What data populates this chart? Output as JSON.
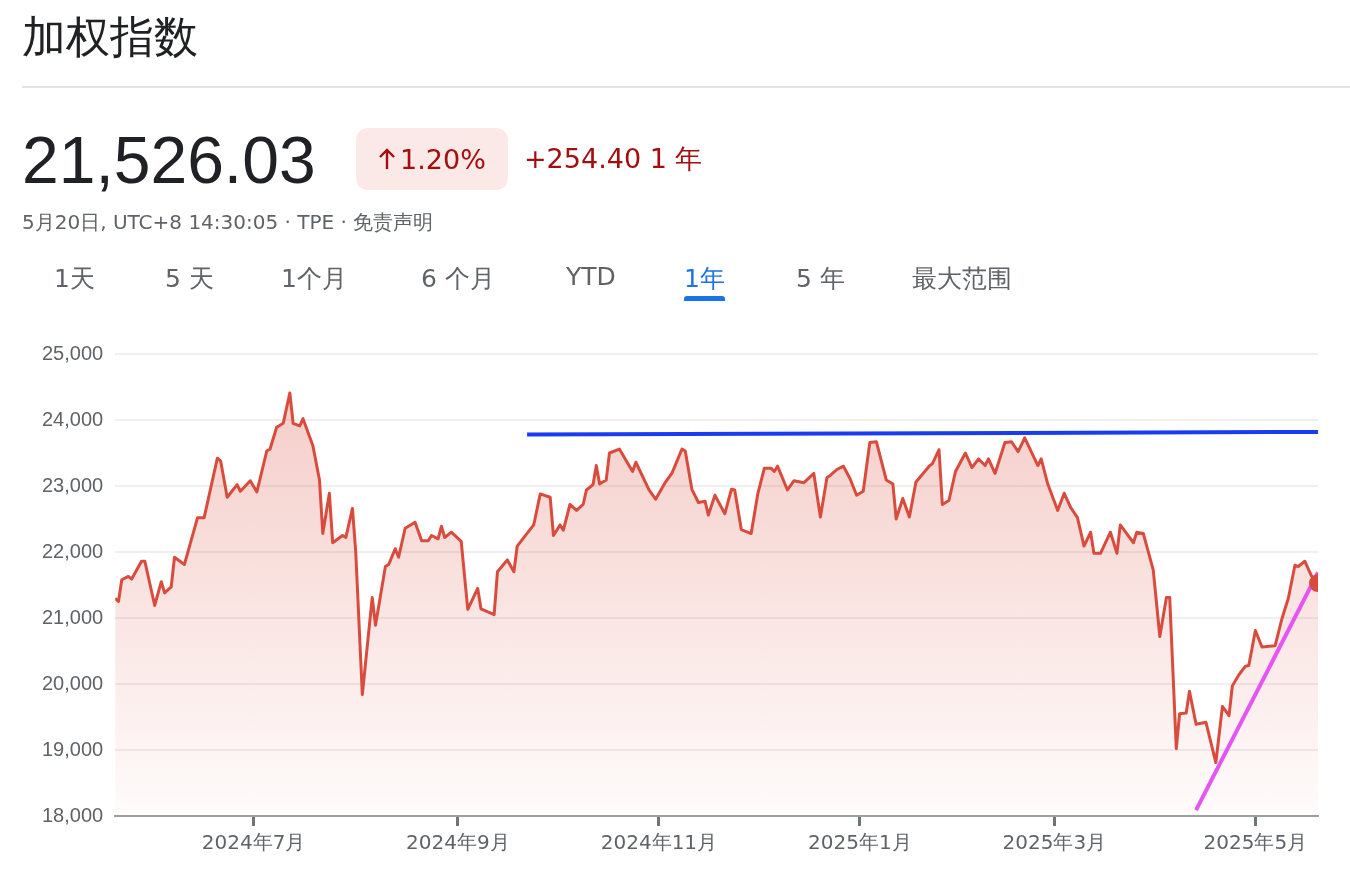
{
  "chart_data": {
    "type": "area",
    "title": "加权指数",
    "subtitle": "5月20日, UTC+8 14:30:05 · TPE · 免责声明",
    "annotations": [
      "21,526.03",
      "1.20%",
      "+254.40 1 年",
      "1天",
      "5 天",
      "1个月",
      "6 个月",
      "YTD",
      "1年",
      "5 年",
      "最大范围"
    ],
    "x": [
      "2024-05-20",
      "2024-05-21",
      "2024-05-22",
      "2024-05-24",
      "2024-05-25",
      "2024-05-28",
      "2024-05-29",
      "2024-06-01",
      "2024-06-03",
      "2024-06-04",
      "2024-06-06",
      "2024-06-07",
      "2024-06-10",
      "2024-06-14",
      "2024-06-16",
      "2024-06-20",
      "2024-06-21",
      "2024-06-23",
      "2024-06-26",
      "2024-06-27",
      "2024-06-30",
      "2024-07-02",
      "2024-07-05",
      "2024-07-06",
      "2024-07-08",
      "2024-07-10",
      "2024-07-12",
      "2024-07-13",
      "2024-07-15",
      "2024-07-16",
      "2024-07-19",
      "2024-07-21",
      "2024-07-22",
      "2024-07-24",
      "2024-07-25",
      "2024-07-28",
      "2024-07-29",
      "2024-07-31",
      "2024-08-01",
      "2024-08-03",
      "2024-08-06",
      "2024-08-07",
      "2024-08-10",
      "2024-08-11",
      "2024-08-13",
      "2024-08-14",
      "2024-08-16",
      "2024-08-19",
      "2024-08-21",
      "2024-08-23",
      "2024-08-24",
      "2024-08-26",
      "2024-08-27",
      "2024-08-28",
      "2024-08-30",
      "2024-09-02",
      "2024-09-04",
      "2024-09-07",
      "2024-09-08",
      "2024-09-12",
      "2024-09-13",
      "2024-09-16",
      "2024-09-18",
      "2024-09-19",
      "2024-09-24",
      "2024-09-26",
      "2024-09-29",
      "2024-09-30",
      "2024-10-02",
      "2024-10-03",
      "2024-10-05",
      "2024-10-07",
      "2024-10-09",
      "2024-10-10",
      "2024-10-12",
      "2024-10-13",
      "2024-10-14",
      "2024-10-16",
      "2024-10-17",
      "2024-10-20",
      "2024-10-24",
      "2024-10-25",
      "2024-10-29",
      "2024-10-31",
      "2024-11-03",
      "2024-11-05",
      "2024-11-08",
      "2024-11-09",
      "2024-11-11",
      "2024-11-13",
      "2024-11-15",
      "2024-11-16",
      "2024-11-18",
      "2024-11-21",
      "2024-11-23",
      "2024-11-24",
      "2024-11-26",
      "2024-11-29",
      "2024-12-01",
      "2024-12-03",
      "2024-12-05",
      "2024-12-06",
      "2024-12-07",
      "2024-12-10",
      "2024-12-12",
      "2024-12-15",
      "2024-12-18",
      "2024-12-20",
      "2024-12-22",
      "2024-12-23",
      "2024-12-25",
      "2024-12-27",
      "2024-12-29",
      "2024-12-31",
      "2025-01-02",
      "2025-01-04",
      "2025-01-06",
      "2025-01-09",
      "2025-01-11",
      "2025-01-12",
      "2025-01-14",
      "2025-01-16",
      "2025-01-18",
      "2025-01-22",
      "2025-01-23",
      "2025-01-25",
      "2025-01-26",
      "2025-01-28",
      "2025-01-30",
      "2025-02-02",
      "2025-02-04",
      "2025-02-06",
      "2025-02-08",
      "2025-02-09",
      "2025-02-11",
      "2025-02-14",
      "2025-02-16",
      "2025-02-18",
      "2025-02-20",
      "2025-02-24",
      "2025-02-25",
      "2025-02-27",
      "2025-03-02",
      "2025-03-04",
      "2025-03-06",
      "2025-03-08",
      "2025-03-10",
      "2025-03-12",
      "2025-03-13",
      "2025-03-15",
      "2025-03-18",
      "2025-03-20",
      "2025-03-21",
      "2025-03-25",
      "2025-03-26",
      "2025-03-28",
      "2025-03-31",
      "2025-04-02",
      "2025-04-04",
      "2025-04-05",
      "2025-04-07",
      "2025-04-08",
      "2025-04-10",
      "2025-04-11",
      "2025-04-13",
      "2025-04-16",
      "2025-04-19",
      "2025-04-21",
      "2025-04-23",
      "2025-04-24",
      "2025-04-26",
      "2025-04-28",
      "2025-04-29",
      "2025-05-01",
      "2025-05-03",
      "2025-05-07",
      "2025-05-09",
      "2025-05-11",
      "2025-05-13",
      "2025-05-14",
      "2025-05-16",
      "2025-05-18",
      "2025-05-19",
      "2025-05-20"
    ],
    "series": [
      {
        "color": "#d94c3d",
        "values": [
          21300,
          21250,
          21580,
          21630,
          21590,
          21860,
          21860,
          21190,
          21550,
          21380,
          21470,
          21920,
          21810,
          22520,
          22520,
          23420,
          23380,
          22830,
          23020,
          22920,
          23080,
          22910,
          23530,
          23560,
          23890,
          23950,
          24410,
          23950,
          23910,
          24020,
          23610,
          23090,
          22280,
          22890,
          22140,
          22250,
          22220,
          22660,
          22000,
          19840,
          21310,
          20890,
          21780,
          21810,
          22050,
          21920,
          22360,
          22450,
          22170,
          22170,
          22250,
          22200,
          22390,
          22220,
          22300,
          22160,
          21130,
          21450,
          21140,
          21050,
          21700,
          21880,
          21700,
          22090,
          22410,
          22880,
          22830,
          22250,
          22410,
          22330,
          22720,
          22630,
          22720,
          22940,
          23020,
          23310,
          23030,
          23090,
          23500,
          23560,
          23220,
          23360,
          22940,
          22800,
          23060,
          23200,
          23560,
          23530,
          22950,
          22750,
          22770,
          22560,
          22860,
          22580,
          22950,
          22940,
          22340,
          22280,
          22880,
          23270,
          23270,
          23220,
          23300,
          22940,
          23080,
          23050,
          23190,
          22530,
          23130,
          23160,
          23250,
          23300,
          23110,
          22860,
          22920,
          23660,
          23670,
          23090,
          23030,
          22500,
          22810,
          22530,
          23060,
          23300,
          23340,
          23550,
          22720,
          22780,
          23220,
          23500,
          23280,
          23410,
          23310,
          23410,
          23190,
          23660,
          23670,
          23520,
          23730,
          23310,
          23410,
          23030,
          22630,
          22890,
          22670,
          22520,
          22090,
          22300,
          21980,
          21980,
          22300,
          21980,
          22410,
          22140,
          22300,
          22280,
          21730,
          20720,
          21310,
          21310,
          19020,
          19550,
          19560,
          19890,
          19390,
          19420,
          18810,
          19660,
          19520,
          19970,
          20140,
          20270,
          20280,
          20810,
          20560,
          20580,
          20980,
          21300,
          21800,
          21780,
          21860,
          21640,
          21580,
          21530
        ]
      },
      {
        "type": "line",
        "color": "#1a3cf0",
        "x": [
          "2024-09-22",
          "2025-05-20"
        ],
        "values": [
          23780,
          23820
        ]
      },
      {
        "type": "line",
        "color": "#e655f2",
        "x": [
          "2025-04-13",
          "2025-05-20"
        ],
        "values": [
          18090,
          21690
        ]
      },
      {
        "type": "scatter",
        "color": "#d94c3d",
        "marker": "circle",
        "x": [
          "2025-05-20"
        ],
        "values": [
          21530
        ]
      }
    ],
    "xlim": [
      "2024-05-20",
      "2025-05-20"
    ],
    "xticks": [
      {
        "value": "2024-07-01",
        "label": "2024年7月"
      },
      {
        "value": "2024-09-01",
        "label": "2024年9月"
      },
      {
        "value": "2024-11-01",
        "label": "2024年11月"
      },
      {
        "value": "2025-01-01",
        "label": "2025年1月"
      },
      {
        "value": "2025-03-01",
        "label": "2025年3月"
      },
      {
        "value": "2025-05-01",
        "label": "2025年5月"
      }
    ],
    "ylim": [
      18000,
      25000
    ],
    "yticks": [
      {
        "value": 18000,
        "label": "18,000"
      },
      {
        "value": 19000,
        "label": "19,000"
      },
      {
        "value": 20000,
        "label": "20,000"
      },
      {
        "value": 21000,
        "label": "21,000"
      },
      {
        "value": 22000,
        "label": "22,000"
      },
      {
        "value": 23000,
        "label": "23,000"
      },
      {
        "value": 24000,
        "label": "24,000"
      },
      {
        "value": 25000,
        "label": "25,000"
      }
    ],
    "grid": "y"
  }
}
